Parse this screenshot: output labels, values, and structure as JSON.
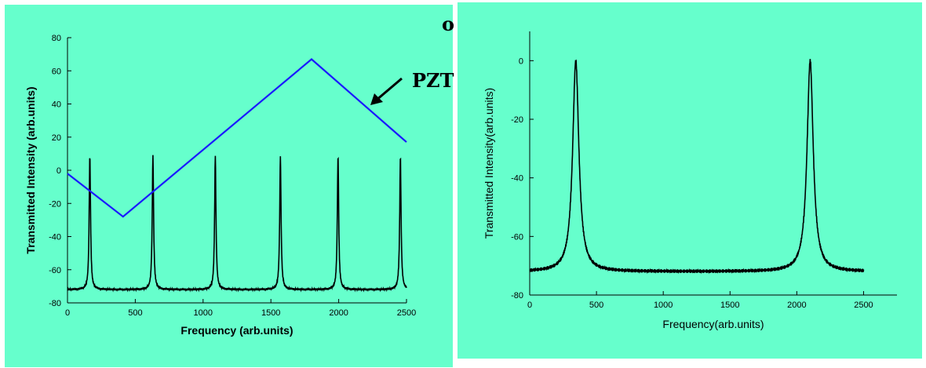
{
  "overlay_text": {
    "top_fragment": "o",
    "pzt_fragment": "PZT"
  },
  "colors": {
    "background": "#66ffcc",
    "trace": "#000000",
    "ramp": "#1a1aff"
  },
  "chart_data": [
    {
      "type": "line",
      "title": "",
      "xlabel": "Frequency (arb.units)",
      "ylabel": "Transmitted Intensity (arb.units)",
      "xlim": [
        0,
        2500
      ],
      "ylim": [
        -80,
        80
      ],
      "xticks": [
        0,
        500,
        1000,
        1500,
        2000,
        2500
      ],
      "yticks": [
        -80,
        -60,
        -40,
        -20,
        0,
        20,
        40,
        60,
        80
      ],
      "grid": false,
      "annotation": "PZT",
      "series": [
        {
          "role": "transmission",
          "color": "#000000",
          "baseline": -72,
          "peak_height": 9,
          "peak_width": 6,
          "peaks": [
            165,
            630,
            1090,
            1570,
            1995,
            2455
          ],
          "x_end": 2500
        },
        {
          "role": "pzt-ramp",
          "color": "#1a1aff",
          "x": [
            0,
            410,
            1800,
            2500
          ],
          "y": [
            -2,
            -28,
            67,
            17
          ]
        }
      ]
    },
    {
      "type": "line",
      "title": "",
      "xlabel": "Frequency(arb.units)",
      "ylabel": "Transmitted Intensity(arb.units)",
      "xlim": [
        0,
        2750
      ],
      "ylim": [
        -80,
        10
      ],
      "xticks": [
        0,
        500,
        1000,
        1500,
        2000,
        2500
      ],
      "yticks": [
        -80,
        -60,
        -40,
        -20,
        0
      ],
      "grid": false,
      "series": [
        {
          "role": "transmission",
          "color": "#000000",
          "baseline": -72,
          "peak_height": 0,
          "peak_width": 28,
          "peaks": [
            345,
            2100
          ],
          "x_end": 2500
        }
      ]
    }
  ]
}
